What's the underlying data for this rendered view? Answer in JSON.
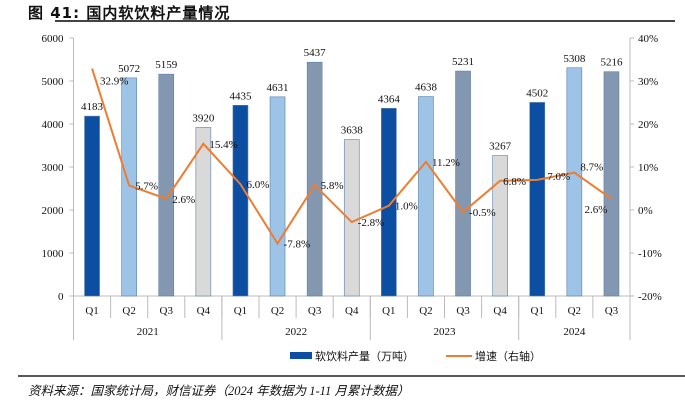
{
  "title": "图 41:  国内软饮料产量情况",
  "source": "资料来源：国家统计局，财信证券（2024 年数据为 1-11 月累计数据）",
  "chart_data": {
    "type": "bar",
    "categories": [
      "Q1",
      "Q2",
      "Q3",
      "Q4",
      "Q1",
      "Q2",
      "Q3",
      "Q4",
      "Q1",
      "Q2",
      "Q3",
      "Q4",
      "Q1",
      "Q2",
      "Q3"
    ],
    "years": [
      {
        "label": "2021",
        "count": 4
      },
      {
        "label": "2022",
        "count": 4
      },
      {
        "label": "2023",
        "count": 4
      },
      {
        "label": "2024",
        "count": 3
      }
    ],
    "series": [
      {
        "name": "软饮料产量（万吨）",
        "type": "bar",
        "axis": "left",
        "values": [
          4183,
          5072,
          5159,
          3920,
          4435,
          4631,
          5437,
          3638,
          4364,
          4638,
          5231,
          3267,
          4502,
          5308,
          5216
        ]
      },
      {
        "name": "增速（右轴）",
        "type": "line",
        "axis": "right",
        "values": [
          32.9,
          5.7,
          2.6,
          15.4,
          6.0,
          -7.8,
          5.8,
          -2.8,
          1.0,
          11.2,
          -0.5,
          6.8,
          7.0,
          8.7,
          2.6
        ],
        "labels": [
          "32.9%",
          "5.7%",
          "2.6%",
          "15.4%",
          "6.0%",
          "-7.8%",
          "5.8%",
          "-2.8%",
          "1.0%",
          "11.2%",
          "-0.5%",
          "6.8%",
          "7.0%",
          "8.7%",
          "2.6%"
        ]
      }
    ],
    "ylim_left": [
      0,
      6000
    ],
    "yticks_left": [
      "0",
      "1000",
      "2000",
      "3000",
      "4000",
      "5000",
      "6000"
    ],
    "ylim_right": [
      -20,
      40
    ],
    "yticks_right": [
      "-20%",
      "-10%",
      "0%",
      "10%",
      "20%",
      "30%",
      "40%"
    ],
    "quarter_colors": {
      "Q1": "#0b4ea2",
      "Q2": "#9dc3e6",
      "Q3": "#8497b0",
      "Q4": "#d9d9d9"
    },
    "line_color": "#ed7d31",
    "legend_position": "bottom"
  }
}
